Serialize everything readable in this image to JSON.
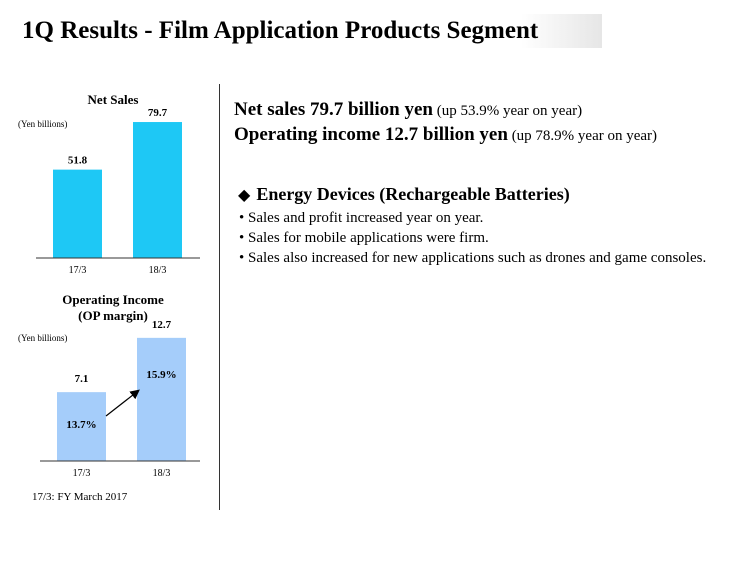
{
  "title": "1Q Results - Film Application Products Segment",
  "headline": {
    "line1_bold": "Net sales 79.7 billion yen",
    "line1_rest": " (up 53.9% year on year)",
    "line2_bold": "Operating income 12.7 billion yen",
    "line2_rest": " (up 78.9% year on year)"
  },
  "section": {
    "bullet_glyph": "◆",
    "heading": "Energy Devices (Rechargeable Batteries)",
    "items": [
      "Sales and profit increased year on year.",
      "Sales for mobile applications were firm.",
      "Sales also increased for new applications such as drones and game consoles."
    ]
  },
  "footnote": "17/3: FY March 2017",
  "colors": {
    "net_sales_bar": "#1ec8f5",
    "operating_income_bar": "#a5cdfa",
    "axis": "#333333"
  },
  "chart_data": [
    {
      "type": "bar",
      "title": "Net Sales",
      "unit_label": "(Yen billions)",
      "categories": [
        "17/3",
        "18/3"
      ],
      "values": [
        51.8,
        79.7
      ],
      "value_labels": [
        "51.8",
        "79.7"
      ],
      "ylim": [
        0,
        85
      ],
      "grid": false,
      "legend": "none"
    },
    {
      "type": "bar",
      "title_lines": [
        "Operating Income",
        "(OP margin)"
      ],
      "unit_label": "(Yen billions)",
      "categories": [
        "17/3",
        "18/3"
      ],
      "values": [
        7.1,
        12.7
      ],
      "value_labels": [
        "7.1",
        "12.7"
      ],
      "margins": [
        "13.7%",
        "15.9%"
      ],
      "ylim": [
        0,
        13.2
      ],
      "grid": false,
      "legend": "none",
      "annotation": "arrow from 17/3 margin to 18/3 margin"
    }
  ]
}
